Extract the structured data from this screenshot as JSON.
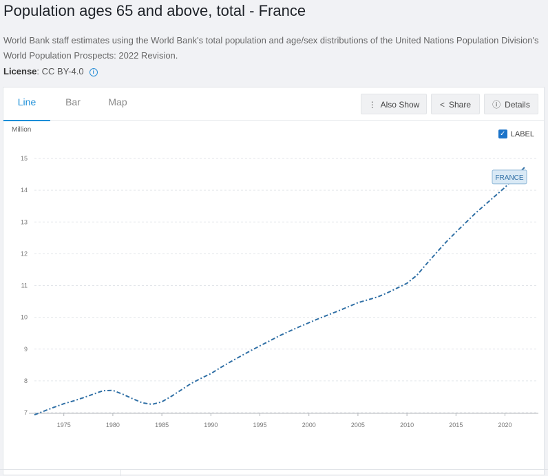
{
  "header": {
    "title": "Population ages 65 and above, total - France",
    "description": "World Bank staff estimates using the World Bank's total population and age/sex distributions of the United Nations Population Division's World Population Prospects: 2022 Revision.",
    "license_label": "License",
    "license_value": ": CC BY-4.0"
  },
  "tabs": [
    {
      "label": "Line",
      "active": true
    },
    {
      "label": "Bar",
      "active": false
    },
    {
      "label": "Map",
      "active": false
    }
  ],
  "toolbar": {
    "also_show_label": "Also Show",
    "share_label": "Share",
    "details_label": "Details"
  },
  "chart_controls": {
    "label_toggle": "LABEL",
    "label_checked": true
  },
  "colors": {
    "line": "#2f6fa5",
    "accent": "#1a8ed8",
    "callout_bg": "#d9e9f5",
    "callout_border": "#8fb8d8"
  },
  "chart_data": {
    "type": "line",
    "ylabel": "Million",
    "ylim": [
      7,
      15
    ],
    "yticks": [
      7,
      8,
      9,
      10,
      11,
      12,
      13,
      14,
      15
    ],
    "xlim": [
      1972,
      2022
    ],
    "xticks": [
      1975,
      1980,
      1985,
      1990,
      1995,
      2000,
      2005,
      2010,
      2015,
      2020
    ],
    "grid": true,
    "line_style": "dash-dot",
    "series": [
      {
        "name": "FRANCE",
        "x": [
          1972,
          1973,
          1974,
          1975,
          1976,
          1977,
          1978,
          1979,
          1980,
          1981,
          1982,
          1983,
          1984,
          1985,
          1986,
          1987,
          1988,
          1989,
          1990,
          1991,
          1992,
          1993,
          1994,
          1995,
          1996,
          1997,
          1998,
          1999,
          2000,
          2001,
          2002,
          2003,
          2004,
          2005,
          2006,
          2007,
          2008,
          2009,
          2010,
          2011,
          2012,
          2013,
          2014,
          2015,
          2016,
          2017,
          2018,
          2019,
          2020,
          2021,
          2022
        ],
        "values": [
          6.93,
          7.05,
          7.17,
          7.28,
          7.37,
          7.47,
          7.58,
          7.69,
          7.7,
          7.58,
          7.44,
          7.31,
          7.26,
          7.34,
          7.52,
          7.72,
          7.92,
          8.08,
          8.23,
          8.42,
          8.6,
          8.77,
          8.94,
          9.1,
          9.26,
          9.42,
          9.56,
          9.7,
          9.83,
          9.96,
          10.08,
          10.2,
          10.33,
          10.46,
          10.55,
          10.64,
          10.77,
          10.92,
          11.07,
          11.32,
          11.68,
          12.03,
          12.37,
          12.68,
          12.98,
          13.28,
          13.55,
          13.82,
          14.09,
          14.4,
          14.72
        ]
      }
    ]
  }
}
